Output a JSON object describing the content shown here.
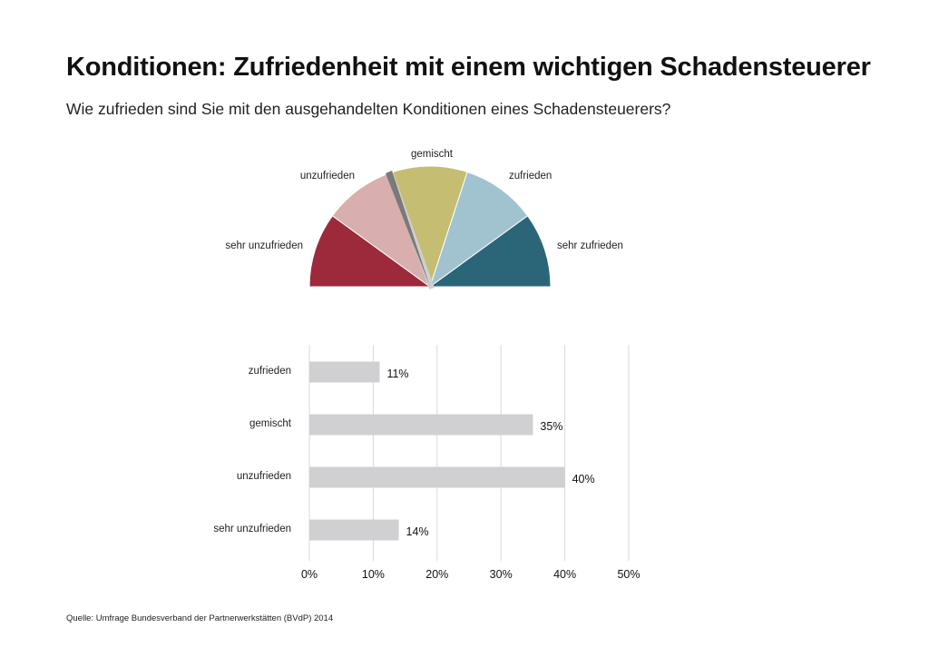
{
  "title": "Konditionen: Zufriedenheit mit einem wichtigen Schadensteuerer",
  "subtitle": "Wie zufrieden sind Sie mit den ausgehandelten Konditionen eines Schadensteuerers?",
  "source": "Quelle: Umfrage Bundesverband der Partnerwerkstätten (BVdP) 2014",
  "chart_data": [
    {
      "type": "gauge",
      "segments": [
        {
          "label": "sehr unzufrieden",
          "color": "#9c2a3b"
        },
        {
          "label": "unzufrieden",
          "color": "#d9aeae"
        },
        {
          "label": "gemischt",
          "color": "#c5bd72"
        },
        {
          "label": "zufrieden",
          "color": "#a1c3cf"
        },
        {
          "label": "sehr zufrieden",
          "color": "#2b6578"
        }
      ],
      "needle_color": "#7a7a7a"
    },
    {
      "type": "bar",
      "orientation": "horizontal",
      "categories": [
        "zufrieden",
        "gemischt",
        "unzufrieden",
        "sehr unzufrieden"
      ],
      "values": [
        11,
        35,
        40,
        14
      ],
      "data_labels": [
        "11%",
        "35%",
        "40%",
        "14%"
      ],
      "xlim": [
        0,
        50
      ],
      "xticks": [
        "0%",
        "10%",
        "20%",
        "30%",
        "40%",
        "50%"
      ],
      "grid": true,
      "bar_color": "#d0d0d2",
      "grid_color": "#d9d9d9"
    }
  ]
}
